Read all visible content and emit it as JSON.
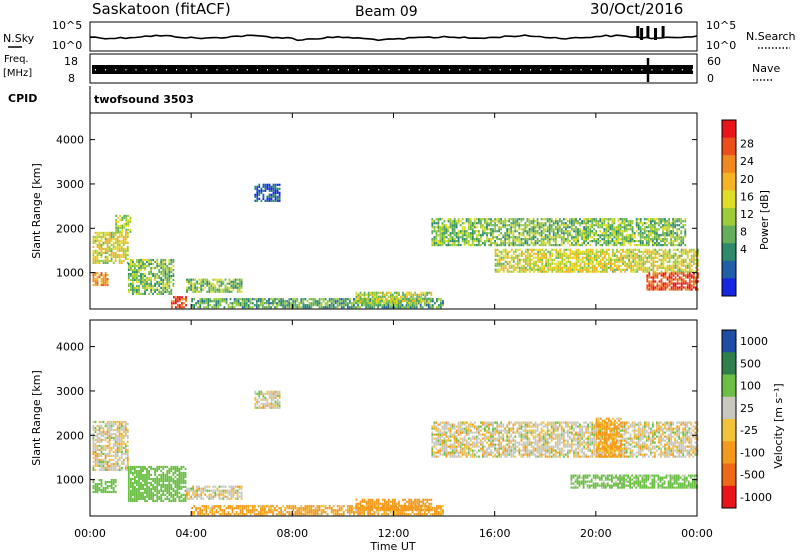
{
  "header": {
    "site": "Saskatoon (fitACF)",
    "beam": "Beam 09",
    "date": "30/Oct/2016"
  },
  "noise_panel": {
    "left_label": "N.Sky",
    "right_label": "N.Search",
    "y_ticks_left": [
      "10^5",
      "10^0"
    ],
    "y_ticks_right": [
      "10^5",
      "10^0"
    ]
  },
  "freq_panel": {
    "left_label_line1": "Freq.",
    "left_label_line2": "[MHz]",
    "left_ticks": [
      "18",
      "8"
    ],
    "right_label": "Nave",
    "right_ticks": [
      "60",
      "0"
    ]
  },
  "cpid": {
    "label": "CPID",
    "value": "twofsound 3503"
  },
  "x_axis": {
    "label": "Time UT",
    "ticks": [
      "00:00",
      "04:00",
      "08:00",
      "12:00",
      "16:00",
      "20:00",
      "00:00"
    ]
  },
  "colorbars": {
    "power": {
      "label": "Power [dB]",
      "ticks": [
        "28",
        "24",
        "20",
        "16",
        "12",
        "8",
        "4"
      ],
      "colors": [
        "#e8141a",
        "#ec4f1b",
        "#f08a1f",
        "#f4b425",
        "#dede2a",
        "#9bcc3a",
        "#63ad5b",
        "#2e8a6a",
        "#1e5fa8",
        "#1426e0"
      ]
    },
    "velocity": {
      "label": "Velocity [m s⁻¹]",
      "ticks": [
        "1000",
        "500",
        "100",
        "25",
        "-25",
        "-100",
        "-500",
        "-1000"
      ],
      "colors": [
        "#1d4ea3",
        "#2f7f4a",
        "#6bbf45",
        "#c8c8c0",
        "#f2c23a",
        "#f29a1c",
        "#ef6a18",
        "#e8141a"
      ]
    }
  },
  "chart_data": [
    {
      "type": "heatmap",
      "title": "",
      "xlabel": "Time UT",
      "ylabel": "Slant Range [km]",
      "xlim": [
        0,
        24
      ],
      "ylim": [
        180,
        4600
      ],
      "y_ticks": [
        "4000",
        "3000",
        "2000",
        "1000"
      ],
      "colorbar_label": "Power [dB]",
      "colorbar_ticks": [
        28,
        24,
        20,
        16,
        12,
        8,
        4
      ],
      "regions": [
        {
          "t0": 0.1,
          "t1": 0.7,
          "r0": 700,
          "r1": 1000,
          "power": 22
        },
        {
          "t0": 0.1,
          "t1": 1.5,
          "r0": 1200,
          "r1": 1900,
          "power": 16
        },
        {
          "t0": 1.0,
          "t1": 1.6,
          "r0": 1900,
          "r1": 2300,
          "power": 14
        },
        {
          "t0": 1.5,
          "t1": 3.3,
          "r0": 500,
          "r1": 1300,
          "power": 12
        },
        {
          "t0": 3.2,
          "t1": 3.8,
          "r0": 200,
          "r1": 450,
          "power": 26
        },
        {
          "t0": 3.8,
          "t1": 6.0,
          "r0": 550,
          "r1": 850,
          "power": 12
        },
        {
          "t0": 4.0,
          "t1": 14.0,
          "r0": 200,
          "r1": 400,
          "power": 10
        },
        {
          "t0": 10.5,
          "t1": 13.5,
          "r0": 300,
          "r1": 550,
          "power": 14
        },
        {
          "t0": 13.5,
          "t1": 23.5,
          "r0": 1600,
          "r1": 2200,
          "power": 12
        },
        {
          "t0": 16.0,
          "t1": 24.0,
          "r0": 1000,
          "r1": 1500,
          "power": 16
        },
        {
          "t0": 22.0,
          "t1": 24.0,
          "r0": 600,
          "r1": 1000,
          "power": 26
        },
        {
          "t0": 6.5,
          "t1": 7.5,
          "r0": 2600,
          "r1": 3000,
          "power": 4
        }
      ]
    },
    {
      "type": "heatmap",
      "title": "",
      "xlabel": "Time UT",
      "ylabel": "Slant Range [km]",
      "xlim": [
        0,
        24
      ],
      "ylim": [
        180,
        4600
      ],
      "y_ticks": [
        "4000",
        "3000",
        "2000",
        "1000"
      ],
      "colorbar_label": "Velocity [m s⁻¹]",
      "colorbar_ticks": [
        1000,
        500,
        100,
        25,
        -25,
        -100,
        -500,
        -1000
      ],
      "regions": [
        {
          "t0": 0.1,
          "t1": 1.5,
          "r0": 1200,
          "r1": 2300,
          "velocity": 0
        },
        {
          "t0": 0.1,
          "t1": 1.0,
          "r0": 700,
          "r1": 1000,
          "velocity": 150
        },
        {
          "t0": 1.5,
          "t1": 3.8,
          "r0": 500,
          "r1": 1300,
          "velocity": 150
        },
        {
          "t0": 3.8,
          "t1": 6.0,
          "r0": 550,
          "r1": 850,
          "velocity": 0
        },
        {
          "t0": 4.0,
          "t1": 14.0,
          "r0": 200,
          "r1": 400,
          "velocity": -100
        },
        {
          "t0": 10.5,
          "t1": 13.5,
          "r0": 300,
          "r1": 550,
          "velocity": -150
        },
        {
          "t0": 13.5,
          "t1": 24.0,
          "r0": 1500,
          "r1": 2300,
          "velocity": 0
        },
        {
          "t0": 19.0,
          "t1": 24.0,
          "r0": 800,
          "r1": 1100,
          "velocity": 120
        },
        {
          "t0": 20.0,
          "t1": 21.0,
          "r0": 1500,
          "r1": 2400,
          "velocity": -100
        },
        {
          "t0": 6.5,
          "t1": 7.5,
          "r0": 2600,
          "r1": 3000,
          "velocity": 0
        }
      ]
    }
  ]
}
